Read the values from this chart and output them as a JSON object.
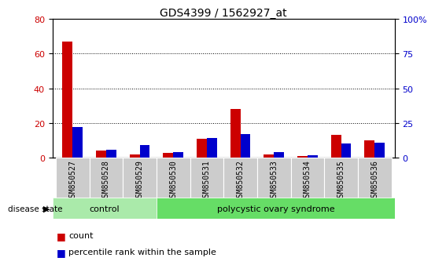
{
  "title": "GDS4399 / 1562927_at",
  "samples": [
    "GSM850527",
    "GSM850528",
    "GSM850529",
    "GSM850530",
    "GSM850531",
    "GSM850532",
    "GSM850533",
    "GSM850534",
    "GSM850535",
    "GSM850536"
  ],
  "count_values": [
    67,
    4,
    2,
    3,
    11,
    28,
    2,
    1,
    13,
    10
  ],
  "percentile_values": [
    22,
    6,
    9,
    4,
    14,
    17,
    4,
    2,
    10,
    11
  ],
  "left_ylim": [
    0,
    80
  ],
  "right_ylim": [
    0,
    100
  ],
  "left_yticks": [
    0,
    20,
    40,
    60,
    80
  ],
  "right_yticks": [
    0,
    25,
    50,
    75,
    100
  ],
  "count_color": "#cc0000",
  "percentile_color": "#0000cc",
  "bar_width": 0.3,
  "control_samples": 3,
  "group_labels": [
    "control",
    "polycystic ovary syndrome"
  ],
  "ctrl_color": "#aaeaaa",
  "pcos_color": "#66dd66",
  "disease_state_label": "disease state",
  "legend_count": "count",
  "legend_percentile": "percentile rank within the sample",
  "tick_label_color_left": "#cc0000",
  "tick_label_color_right": "#0000cc",
  "background_color": "#ffffff",
  "plot_bg_color": "#ffffff",
  "grid_color": "#000000",
  "x_tick_bg": "#cccccc",
  "title_fontsize": 10
}
